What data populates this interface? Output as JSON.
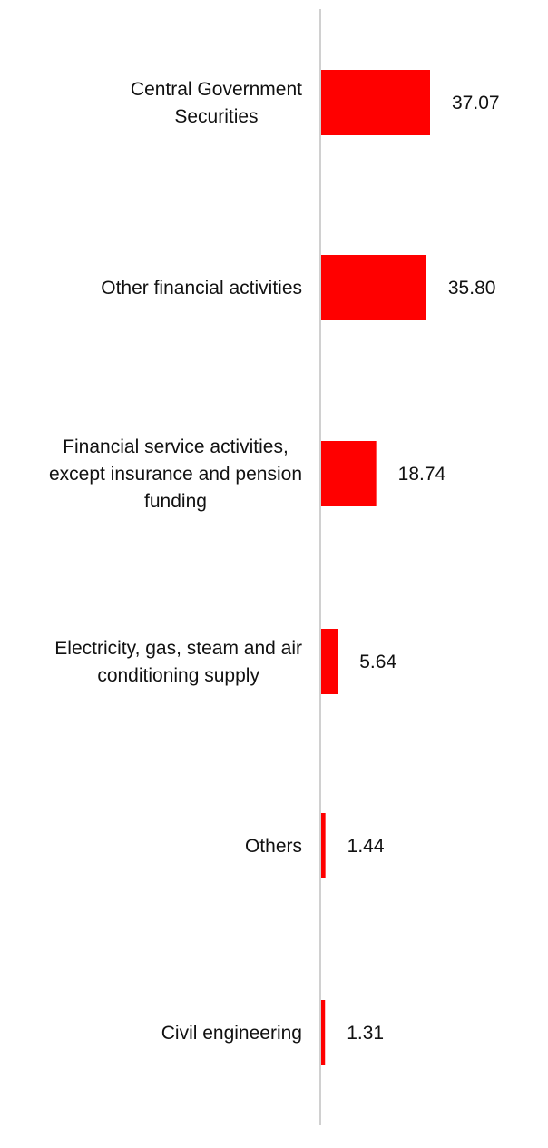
{
  "chart_data": {
    "type": "bar",
    "orientation": "horizontal",
    "categories": [
      "Central Government Securities",
      "Other financial activities",
      "Financial service activities, except insurance and pension funding",
      "Electricity, gas, steam and air conditioning supply",
      "Others",
      "Civil engineering"
    ],
    "category_lines": [
      [
        "Central Government",
        "Securities"
      ],
      [
        "Other financial activities"
      ],
      [
        "Financial service activities,",
        "except insurance and pension",
        "funding"
      ],
      [
        "Electricity, gas, steam and air",
        "conditioning supply"
      ],
      [
        "Others"
      ],
      [
        "Civil engineering"
      ]
    ],
    "values": [
      37.07,
      35.8,
      18.74,
      5.64,
      1.44,
      1.31
    ],
    "value_labels": [
      "37.07",
      "35.80",
      "18.74",
      "5.64",
      "1.44",
      "1.31"
    ],
    "xlim": [
      0,
      150
    ],
    "grid": false,
    "bar_color": "#ff0000",
    "axis_color": "#d0d0d0"
  }
}
